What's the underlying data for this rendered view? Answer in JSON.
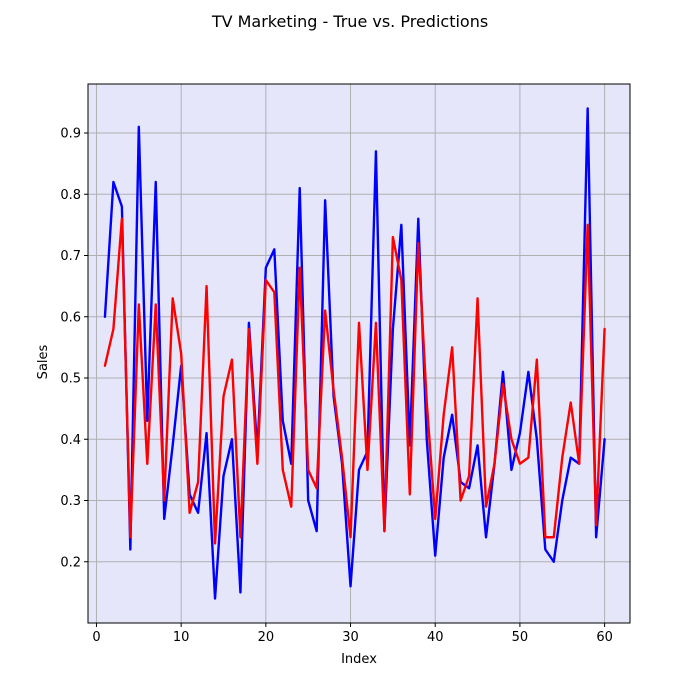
{
  "chart_data": {
    "type": "line",
    "title": "TV Marketing - True vs. Predictions",
    "xlabel": "Index",
    "ylabel": "Sales",
    "xlim": [
      -1,
      63
    ],
    "ylim": [
      0.1,
      0.98
    ],
    "xticks": [
      0,
      10,
      20,
      30,
      40,
      50,
      60
    ],
    "yticks": [
      0.2,
      0.3,
      0.4,
      0.5,
      0.6,
      0.7,
      0.8,
      0.9
    ],
    "grid": true,
    "background_color": "#e6e6fa",
    "x": [
      1,
      2,
      3,
      4,
      5,
      6,
      7,
      8,
      9,
      10,
      11,
      12,
      13,
      14,
      15,
      16,
      17,
      18,
      19,
      20,
      21,
      22,
      23,
      24,
      25,
      26,
      27,
      28,
      29,
      30,
      31,
      32,
      33,
      34,
      35,
      36,
      37,
      38,
      39,
      40,
      41,
      42,
      43,
      44,
      45,
      46,
      47,
      48,
      49,
      50,
      51,
      52,
      53,
      54,
      55,
      56,
      57,
      58,
      59,
      60
    ],
    "series": [
      {
        "color": "#0000ff",
        "values": [
          0.6,
          0.82,
          0.78,
          0.22,
          0.91,
          0.43,
          0.82,
          0.27,
          0.39,
          0.52,
          0.31,
          0.28,
          0.41,
          0.14,
          0.34,
          0.4,
          0.15,
          0.59,
          0.38,
          0.68,
          0.71,
          0.43,
          0.36,
          0.81,
          0.3,
          0.25,
          0.79,
          0.47,
          0.36,
          0.16,
          0.35,
          0.38,
          0.87,
          0.25,
          0.58,
          0.75,
          0.39,
          0.76,
          0.4,
          0.21,
          0.37,
          0.44,
          0.33,
          0.32,
          0.39,
          0.24,
          0.36,
          0.51,
          0.35,
          0.41,
          0.51,
          0.4,
          0.22,
          0.2,
          0.3,
          0.37,
          0.36,
          0.94,
          0.24,
          0.4
        ]
      },
      {
        "color": "#ff0000",
        "values": [
          0.52,
          0.58,
          0.76,
          0.24,
          0.62,
          0.36,
          0.62,
          0.3,
          0.63,
          0.54,
          0.28,
          0.33,
          0.65,
          0.23,
          0.47,
          0.53,
          0.24,
          0.58,
          0.36,
          0.66,
          0.64,
          0.35,
          0.29,
          0.68,
          0.35,
          0.32,
          0.61,
          0.48,
          0.37,
          0.24,
          0.59,
          0.35,
          0.59,
          0.25,
          0.73,
          0.66,
          0.31,
          0.72,
          0.46,
          0.27,
          0.44,
          0.55,
          0.3,
          0.34,
          0.63,
          0.29,
          0.36,
          0.49,
          0.4,
          0.36,
          0.37,
          0.53,
          0.24,
          0.24,
          0.37,
          0.46,
          0.36,
          0.75,
          0.26,
          0.58
        ]
      }
    ]
  }
}
